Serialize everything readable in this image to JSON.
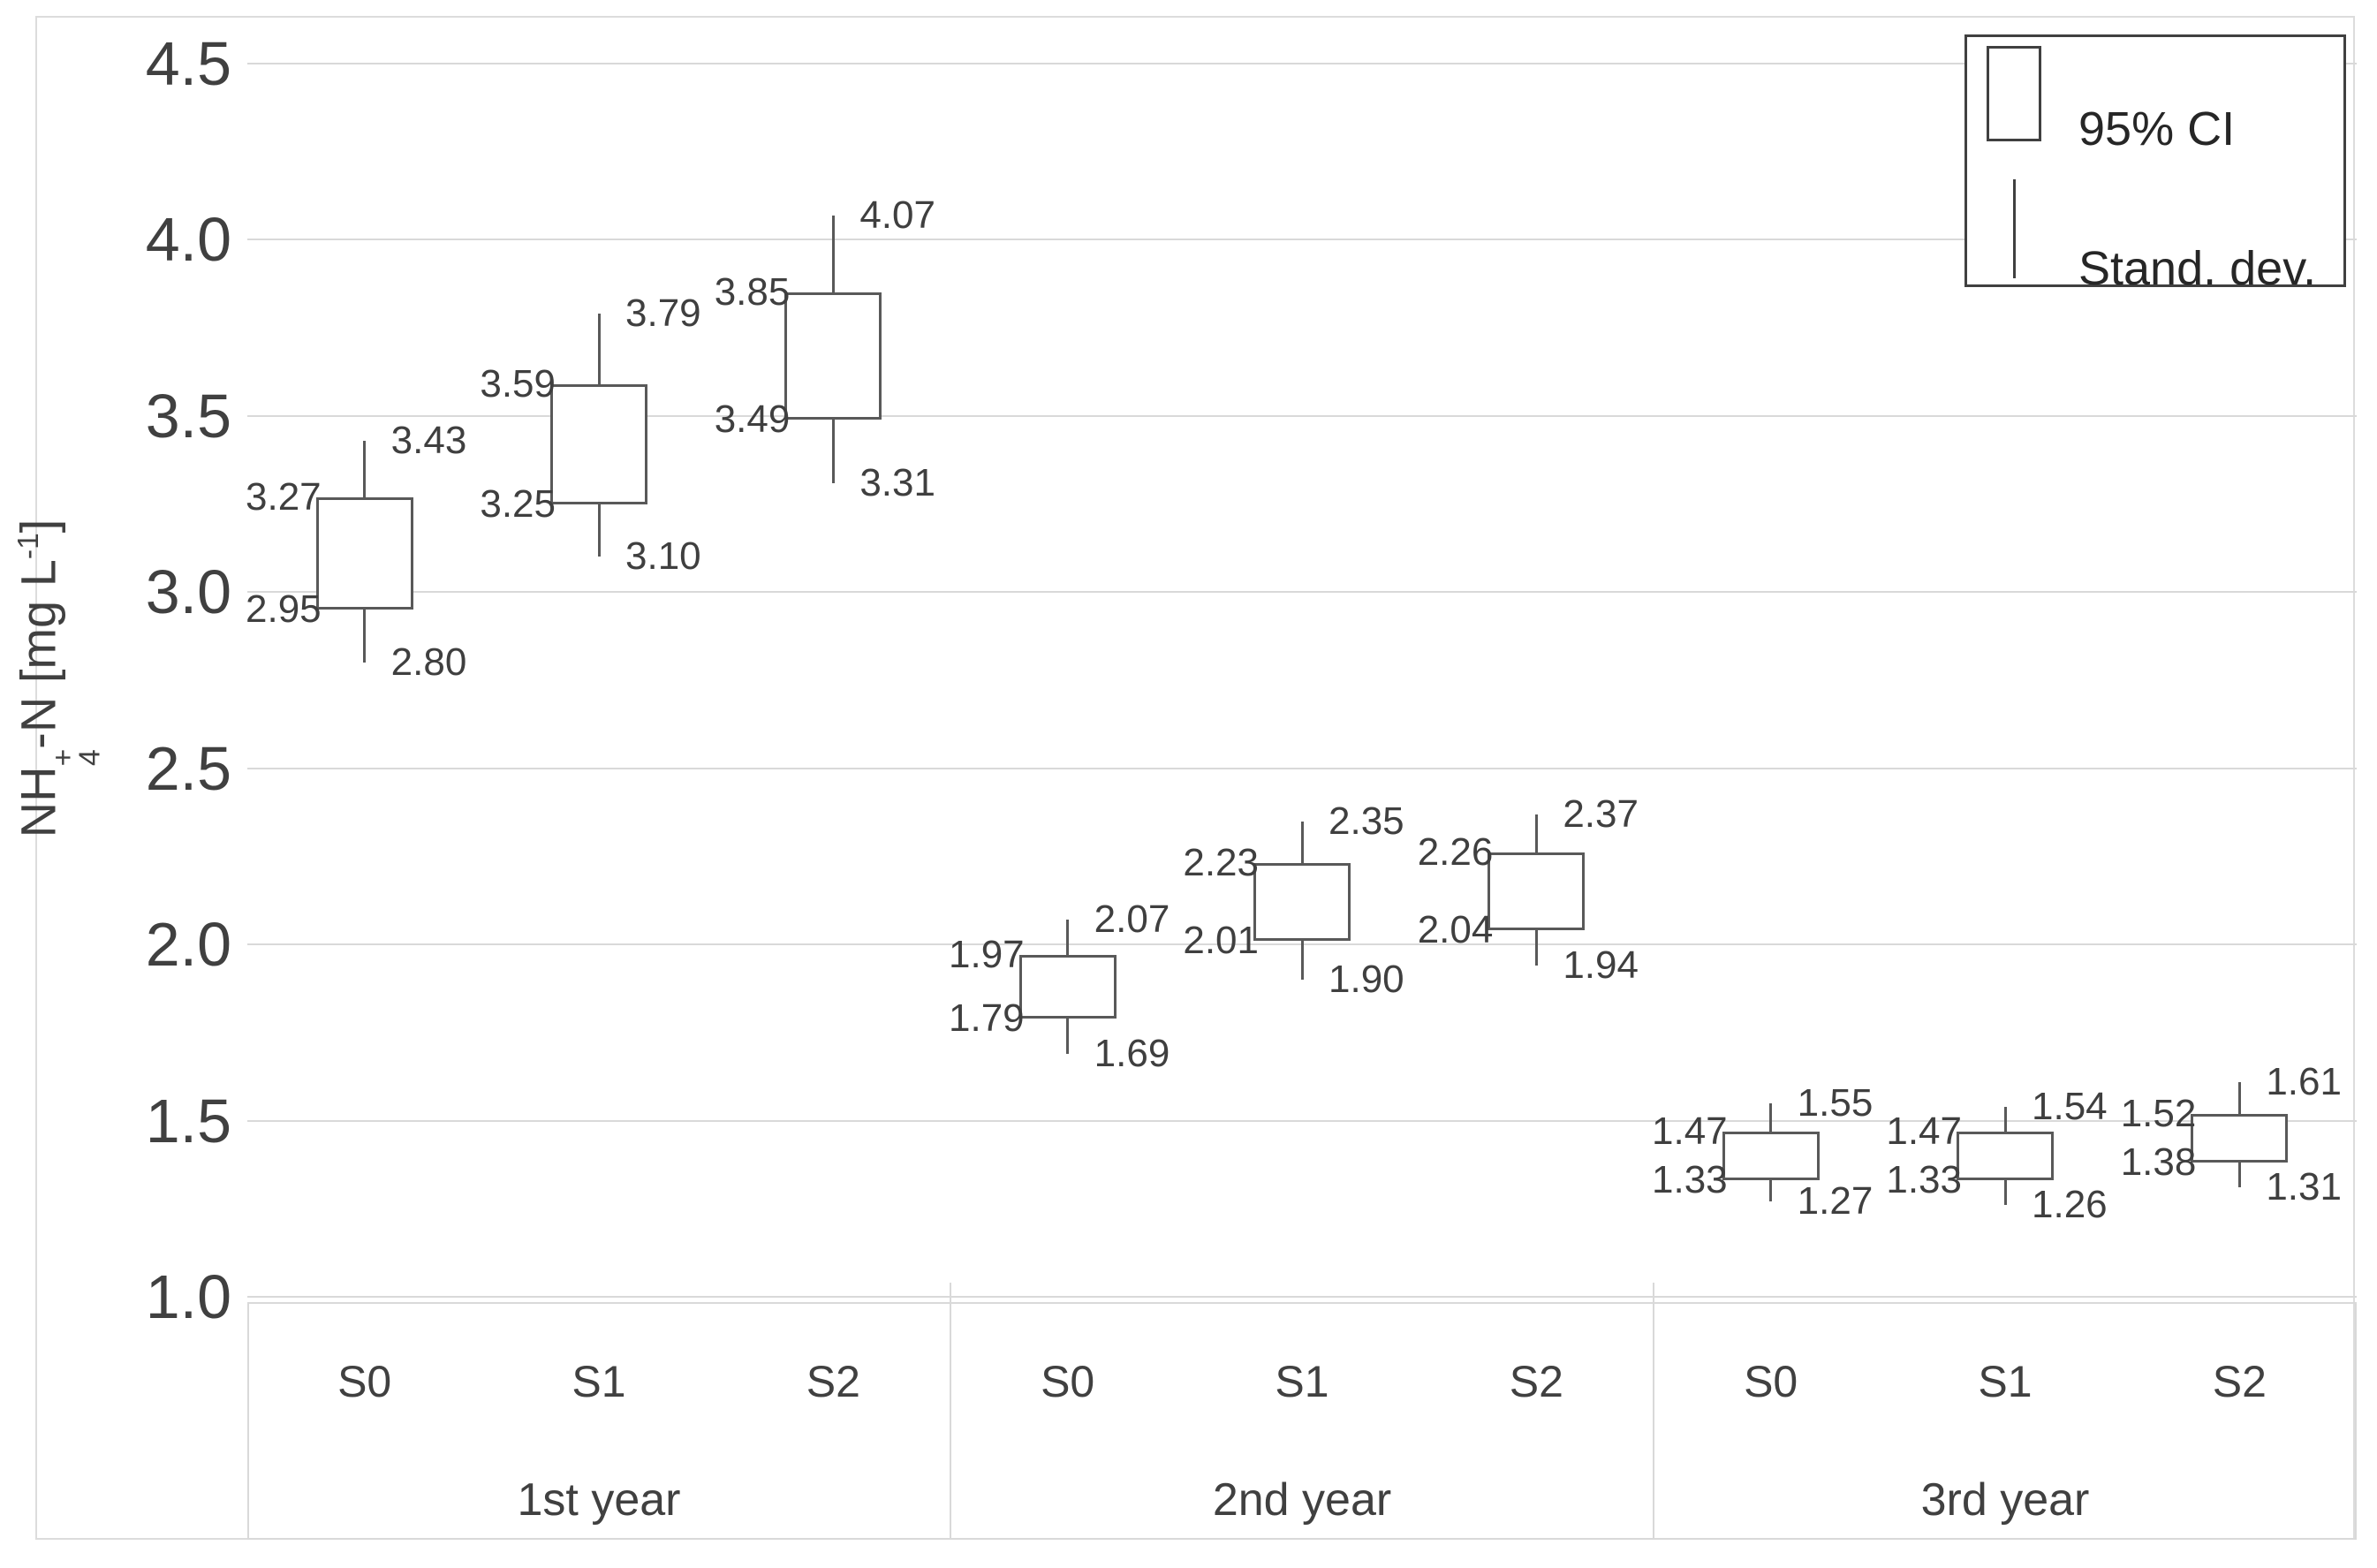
{
  "figure": {
    "kind": "grouped CI boxplot with standard-deviation whiskers",
    "background": "#ffffff"
  },
  "y_axis": {
    "title_text": "NH4+-N [mg L-1]",
    "title_parts": [
      {
        "text": "NH"
      },
      {
        "sub": "4",
        "sup": "+"
      },
      {
        "text": "-N [mg L"
      },
      {
        "sup": "-1"
      },
      {
        "text": "]"
      }
    ],
    "tick_labels": [
      "4.5",
      "4.0",
      "3.5",
      "3.0",
      "2.5",
      "2.0",
      "1.5",
      "1.0"
    ]
  },
  "legend": {
    "items": [
      {
        "symbol": "box",
        "label": "95% CI"
      },
      {
        "symbol": "line",
        "label": "Stand. dev."
      }
    ]
  },
  "chart_data": {
    "type": "boxplot",
    "subtype": "95%-CI boxes with standard-deviation whiskers, data labels on box and whisker ends",
    "title": "",
    "xlabel": "",
    "ylabel": "NH4+-N [mg L-1]",
    "ylim": [
      1.0,
      4.5
    ],
    "yticks": [
      4.5,
      4.0,
      3.5,
      3.0,
      2.5,
      2.0,
      1.5,
      1.0
    ],
    "grid": "horizontal",
    "legend_position": "top-right",
    "label_format": "0.00",
    "groups": [
      {
        "label": "1st year",
        "treatments": [
          {
            "label": "S0",
            "ci_low": 2.95,
            "ci_high": 3.27,
            "sd_low": 2.8,
            "sd_high": 3.43
          },
          {
            "label": "S1",
            "ci_low": 3.25,
            "ci_high": 3.59,
            "sd_low": 3.1,
            "sd_high": 3.79
          },
          {
            "label": "S2",
            "ci_low": 3.49,
            "ci_high": 3.85,
            "sd_low": 3.31,
            "sd_high": 4.07
          }
        ]
      },
      {
        "label": "2nd year",
        "treatments": [
          {
            "label": "S0",
            "ci_low": 1.79,
            "ci_high": 1.97,
            "sd_low": 1.69,
            "sd_high": 2.07
          },
          {
            "label": "S1",
            "ci_low": 2.01,
            "ci_high": 2.23,
            "sd_low": 1.9,
            "sd_high": 2.35
          },
          {
            "label": "S2",
            "ci_low": 2.04,
            "ci_high": 2.26,
            "sd_low": 1.94,
            "sd_high": 2.37
          }
        ]
      },
      {
        "label": "3rd year",
        "treatments": [
          {
            "label": "S0",
            "ci_low": 1.33,
            "ci_high": 1.47,
            "sd_low": 1.27,
            "sd_high": 1.55
          },
          {
            "label": "S1",
            "ci_low": 1.33,
            "ci_high": 1.47,
            "sd_low": 1.26,
            "sd_high": 1.54
          },
          {
            "label": "S2",
            "ci_low": 1.38,
            "ci_high": 1.52,
            "sd_low": 1.31,
            "sd_high": 1.61
          }
        ]
      }
    ]
  },
  "colors": {
    "grid": "#d9d9d9",
    "stroke": "#595959",
    "text": "#3f3f3f",
    "tick_text": "#404040",
    "legend_border": "#404040",
    "band_line": "#d9d9d9",
    "outer_border": "#dcdcdc"
  }
}
